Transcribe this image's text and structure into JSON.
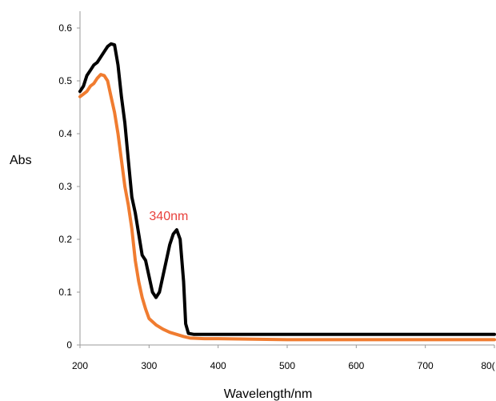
{
  "chart_data": {
    "type": "line",
    "xlabel": "Wavelength/nm",
    "ylabel": "Abs",
    "xlim": [
      200,
      800
    ],
    "ylim": [
      0,
      0.6
    ],
    "x_ticks": [
      "200",
      "300",
      "400",
      "500",
      "600",
      "700",
      "80("
    ],
    "y_ticks": [
      "0",
      "0.1",
      "0.2",
      "0.3",
      "0.4",
      "0.5",
      "0.6"
    ],
    "grid": false,
    "legend": "none",
    "annotations": [
      {
        "text": "340nm",
        "x": 340,
        "y": 0.218,
        "color": "#e8413c"
      }
    ],
    "series": [
      {
        "color": "#000000",
        "points": [
          [
            200,
            0.48
          ],
          [
            205,
            0.49
          ],
          [
            210,
            0.51
          ],
          [
            215,
            0.52
          ],
          [
            220,
            0.53
          ],
          [
            225,
            0.535
          ],
          [
            230,
            0.545
          ],
          [
            235,
            0.555
          ],
          [
            240,
            0.565
          ],
          [
            245,
            0.57
          ],
          [
            250,
            0.568
          ],
          [
            255,
            0.53
          ],
          [
            260,
            0.47
          ],
          [
            265,
            0.42
          ],
          [
            270,
            0.35
          ],
          [
            275,
            0.28
          ],
          [
            280,
            0.25
          ],
          [
            285,
            0.21
          ],
          [
            290,
            0.17
          ],
          [
            295,
            0.16
          ],
          [
            300,
            0.13
          ],
          [
            305,
            0.1
          ],
          [
            310,
            0.09
          ],
          [
            315,
            0.1
          ],
          [
            320,
            0.13
          ],
          [
            325,
            0.16
          ],
          [
            330,
            0.19
          ],
          [
            335,
            0.21
          ],
          [
            340,
            0.218
          ],
          [
            345,
            0.2
          ],
          [
            350,
            0.12
          ],
          [
            353,
            0.04
          ],
          [
            357,
            0.022
          ],
          [
            365,
            0.02
          ],
          [
            400,
            0.02
          ],
          [
            450,
            0.02
          ],
          [
            500,
            0.02
          ],
          [
            550,
            0.02
          ],
          [
            600,
            0.02
          ],
          [
            650,
            0.02
          ],
          [
            700,
            0.02
          ],
          [
            750,
            0.02
          ],
          [
            800,
            0.02
          ]
        ]
      },
      {
        "color": "#f07c30",
        "points": [
          [
            200,
            0.47
          ],
          [
            205,
            0.475
          ],
          [
            210,
            0.48
          ],
          [
            215,
            0.49
          ],
          [
            220,
            0.495
          ],
          [
            225,
            0.505
          ],
          [
            230,
            0.512
          ],
          [
            235,
            0.51
          ],
          [
            240,
            0.5
          ],
          [
            245,
            0.47
          ],
          [
            250,
            0.44
          ],
          [
            255,
            0.4
          ],
          [
            260,
            0.35
          ],
          [
            265,
            0.3
          ],
          [
            270,
            0.265
          ],
          [
            275,
            0.22
          ],
          [
            280,
            0.16
          ],
          [
            285,
            0.12
          ],
          [
            290,
            0.09
          ],
          [
            295,
            0.068
          ],
          [
            300,
            0.05
          ],
          [
            310,
            0.038
          ],
          [
            320,
            0.03
          ],
          [
            330,
            0.024
          ],
          [
            340,
            0.02
          ],
          [
            350,
            0.016
          ],
          [
            360,
            0.013
          ],
          [
            380,
            0.012
          ],
          [
            400,
            0.012
          ],
          [
            450,
            0.011
          ],
          [
            500,
            0.01
          ],
          [
            550,
            0.01
          ],
          [
            600,
            0.01
          ],
          [
            650,
            0.01
          ],
          [
            700,
            0.01
          ],
          [
            750,
            0.01
          ],
          [
            800,
            0.01
          ]
        ]
      }
    ]
  }
}
